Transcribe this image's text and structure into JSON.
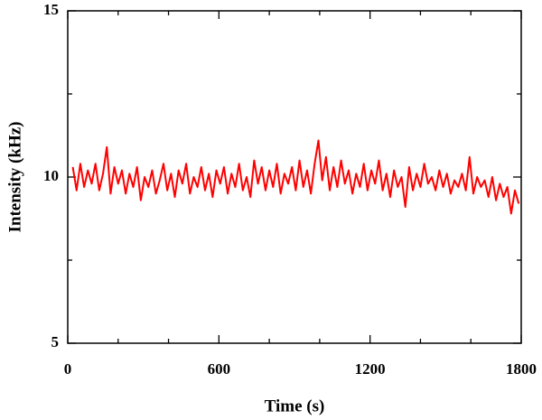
{
  "chart_data": {
    "type": "line",
    "xlabel": "Time (s)",
    "ylabel": "Intensity (kHz)",
    "xlim": [
      0,
      1800
    ],
    "xticks": [
      0,
      600,
      1200,
      1800
    ],
    "xminorticks": [
      200,
      400,
      800,
      1000,
      1400,
      1600
    ],
    "ylim": [
      5,
      15
    ],
    "yticks": [
      5,
      10,
      15
    ],
    "yminorticks": [
      7.5,
      12.5
    ],
    "grid": false,
    "series": [
      {
        "color": "#ff0000",
        "x": [
          20,
          35,
          50,
          65,
          80,
          95,
          110,
          125,
          140,
          155,
          170,
          185,
          200,
          215,
          230,
          245,
          260,
          275,
          290,
          305,
          320,
          335,
          350,
          365,
          380,
          395,
          410,
          425,
          440,
          455,
          470,
          485,
          500,
          515,
          530,
          545,
          560,
          575,
          590,
          605,
          620,
          635,
          650,
          665,
          680,
          695,
          710,
          725,
          740,
          755,
          770,
          785,
          800,
          815,
          830,
          845,
          860,
          875,
          890,
          905,
          920,
          935,
          950,
          965,
          980,
          995,
          1010,
          1025,
          1040,
          1055,
          1070,
          1085,
          1100,
          1115,
          1130,
          1145,
          1160,
          1175,
          1190,
          1205,
          1220,
          1235,
          1250,
          1265,
          1280,
          1295,
          1310,
          1325,
          1340,
          1355,
          1370,
          1385,
          1400,
          1415,
          1430,
          1445,
          1460,
          1475,
          1490,
          1505,
          1520,
          1535,
          1550,
          1565,
          1580,
          1595,
          1610,
          1625,
          1640,
          1655,
          1670,
          1685,
          1700,
          1715,
          1730,
          1745,
          1760,
          1775,
          1790
        ],
        "values": [
          10.3,
          9.6,
          10.4,
          9.7,
          10.2,
          9.8,
          10.4,
          9.6,
          10.1,
          10.9,
          9.5,
          10.3,
          9.8,
          10.2,
          9.5,
          10.1,
          9.7,
          10.3,
          9.3,
          10.0,
          9.7,
          10.2,
          9.5,
          9.9,
          10.4,
          9.6,
          10.1,
          9.4,
          10.2,
          9.8,
          10.4,
          9.5,
          10.0,
          9.7,
          10.3,
          9.6,
          10.1,
          9.4,
          10.2,
          9.8,
          10.3,
          9.5,
          10.1,
          9.7,
          10.4,
          9.6,
          10.0,
          9.4,
          10.5,
          9.8,
          10.3,
          9.6,
          10.2,
          9.7,
          10.4,
          9.5,
          10.1,
          9.8,
          10.3,
          9.6,
          10.5,
          9.7,
          10.2,
          9.5,
          10.4,
          11.1,
          9.9,
          10.6,
          9.6,
          10.3,
          9.7,
          10.5,
          9.8,
          10.2,
          9.5,
          10.1,
          9.7,
          10.4,
          9.6,
          10.2,
          9.8,
          10.5,
          9.6,
          10.1,
          9.4,
          10.2,
          9.7,
          10.0,
          9.1,
          10.3,
          9.6,
          10.1,
          9.7,
          10.4,
          9.8,
          10.0,
          9.6,
          10.2,
          9.7,
          10.1,
          9.5,
          9.9,
          9.7,
          10.1,
          9.6,
          10.6,
          9.5,
          10.0,
          9.7,
          9.9,
          9.4,
          10.0,
          9.3,
          9.8,
          9.4,
          9.7,
          8.9,
          9.6,
          9.2
        ]
      }
    ]
  }
}
